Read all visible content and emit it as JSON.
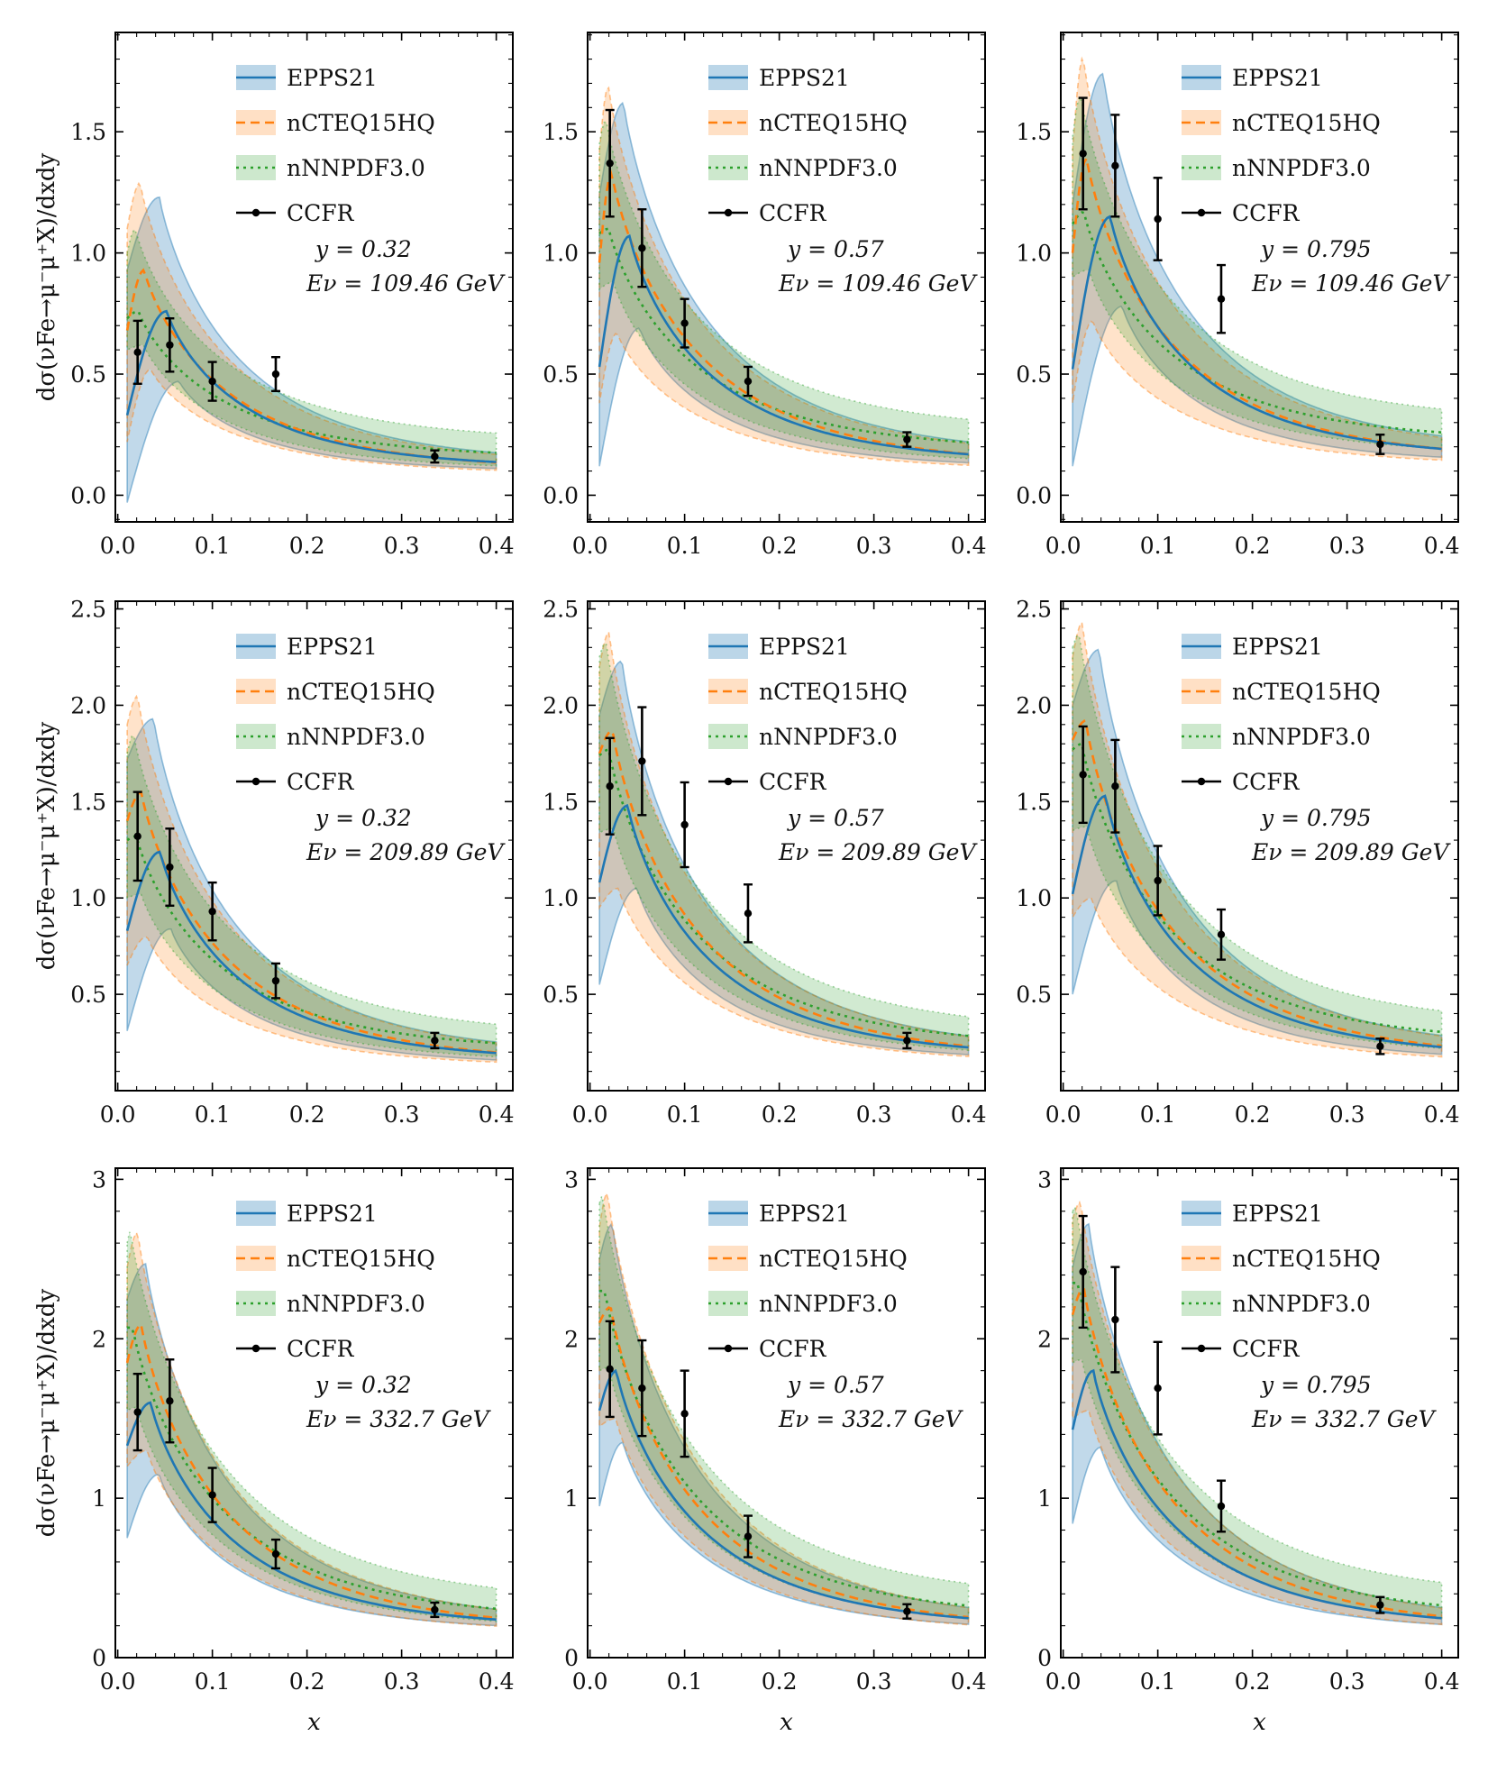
{
  "figure": {
    "ylabel": "dσ(νFe→μ⁻μ⁺X)/dxdy",
    "xlabel": "x"
  },
  "colors": {
    "epps": "#1f77b4",
    "nct": "#ff7f0e",
    "nnpdf": "#2ca02c",
    "ccfr": "#000000"
  },
  "legend": [
    "EPPS21",
    "nCTEQ15HQ",
    "nNNPDF3.0",
    "CCFR"
  ],
  "chart_data": [
    {
      "type": "line",
      "row": 0,
      "col": 0,
      "y_label": "y = 0.32",
      "e_label": "Eν = 109.46 GeV",
      "xlim": [
        -0.0025,
        0.4175
      ],
      "ylim": [
        -0.11,
        1.91
      ],
      "xticks": [
        "0.0",
        "0.1",
        "0.2",
        "0.3",
        "0.4"
      ],
      "yticks": [
        "0.0",
        "0.5",
        "1.0",
        "1.5"
      ],
      "epps": {
        "peak": 0.76,
        "xpk": 0.052,
        "start": 0.33,
        "tail": 0.11,
        "lo_start": -0.03,
        "lo_peak": 0.47,
        "lo_tail": 0.095,
        "hi_start": 0.93,
        "hi_peak": 1.23,
        "hi_tail": 0.13
      },
      "nct": {
        "peak": 0.93,
        "xpk": 0.028,
        "start": 0.68,
        "tail": 0.1,
        "lo_start": 0.22,
        "lo_peak": 0.52,
        "lo_tail": 0.085,
        "hi_start": 1.1,
        "hi_peak": 1.29,
        "hi_tail": 0.12
      },
      "nnpdf": {
        "peak": 0.76,
        "xpk": 0.022,
        "start": 0.73,
        "tail": 0.15,
        "lo_start": 0.6,
        "lo_peak": 0.62,
        "lo_tail": 0.1,
        "hi_start": 1.0,
        "hi_peak": 1.1,
        "hi_tail": 0.22
      },
      "ccfr": {
        "x": [
          0.021,
          0.055,
          0.1,
          0.167,
          0.335
        ],
        "y": [
          0.59,
          0.62,
          0.47,
          0.5,
          0.16
        ],
        "err": [
          0.13,
          0.11,
          0.08,
          0.07,
          0.025
        ]
      }
    },
    {
      "type": "line",
      "row": 0,
      "col": 1,
      "y_label": "y = 0.57",
      "e_label": "Eν = 109.46 GeV",
      "xlim": [
        -0.0025,
        0.4175
      ],
      "ylim": [
        -0.11,
        1.91
      ],
      "xticks": [
        "0.0",
        "0.1",
        "0.2",
        "0.3",
        "0.4"
      ],
      "yticks": [
        "0.0",
        "0.5",
        "1.0",
        "1.5"
      ],
      "epps": {
        "peak": 1.07,
        "xpk": 0.042,
        "start": 0.53,
        "tail": 0.13,
        "lo_start": 0.12,
        "lo_peak": 0.69,
        "lo_tail": 0.11,
        "hi_start": 1.24,
        "hi_peak": 1.62,
        "hi_tail": 0.16
      },
      "nct": {
        "peak": 1.33,
        "xpk": 0.023,
        "start": 0.96,
        "tail": 0.12,
        "lo_start": 0.38,
        "lo_peak": 0.67,
        "lo_tail": 0.1,
        "hi_start": 1.42,
        "hi_peak": 1.69,
        "hi_tail": 0.15
      },
      "nnpdf": {
        "peak": 1.1,
        "xpk": 0.02,
        "start": 1.08,
        "tail": 0.18,
        "lo_start": 0.85,
        "lo_peak": 0.88,
        "lo_tail": 0.12,
        "hi_start": 1.45,
        "hi_peak": 1.55,
        "hi_tail": 0.26
      },
      "ccfr": {
        "x": [
          0.021,
          0.055,
          0.1,
          0.167,
          0.335
        ],
        "y": [
          1.37,
          1.02,
          0.71,
          0.47,
          0.23
        ],
        "err": [
          0.22,
          0.16,
          0.1,
          0.06,
          0.03
        ]
      }
    },
    {
      "type": "line",
      "row": 0,
      "col": 2,
      "y_label": "y = 0.795",
      "e_label": "Eν = 109.46 GeV",
      "xlim": [
        -0.0025,
        0.4175
      ],
      "ylim": [
        -0.11,
        1.91
      ],
      "xticks": [
        "0.0",
        "0.1",
        "0.2",
        "0.3",
        "0.4"
      ],
      "yticks": [
        "0.0",
        "0.5",
        "1.0",
        "1.5"
      ],
      "epps": {
        "peak": 1.15,
        "xpk": 0.05,
        "start": 0.52,
        "tail": 0.15,
        "lo_start": 0.12,
        "lo_peak": 0.78,
        "lo_tail": 0.13,
        "hi_start": 1.2,
        "hi_peak": 1.74,
        "hi_tail": 0.18
      },
      "nct": {
        "peak": 1.39,
        "xpk": 0.025,
        "start": 1.0,
        "tail": 0.14,
        "lo_start": 0.38,
        "lo_peak": 0.72,
        "lo_tail": 0.12,
        "hi_start": 1.42,
        "hi_peak": 1.81,
        "hi_tail": 0.17
      },
      "nnpdf": {
        "peak": 1.17,
        "xpk": 0.022,
        "start": 1.12,
        "tail": 0.22,
        "lo_start": 0.9,
        "lo_peak": 0.93,
        "lo_tail": 0.16,
        "hi_start": 1.48,
        "hi_peak": 1.65,
        "hi_tail": 0.3
      },
      "ccfr": {
        "x": [
          0.021,
          0.055,
          0.1,
          0.167,
          0.335
        ],
        "y": [
          1.41,
          1.36,
          1.14,
          0.81,
          0.21
        ],
        "err": [
          0.23,
          0.21,
          0.17,
          0.14,
          0.04
        ]
      }
    },
    {
      "type": "line",
      "row": 1,
      "col": 0,
      "y_label": "y = 0.32",
      "e_label": "Eν = 209.89 GeV",
      "xlim": [
        -0.0025,
        0.4175
      ],
      "ylim": [
        0.0,
        2.54
      ],
      "xticks": [
        "0.0",
        "0.1",
        "0.2",
        "0.3",
        "0.4"
      ],
      "yticks": [
        "0.5",
        "1.0",
        "1.5",
        "2.0",
        "2.5"
      ],
      "epps": {
        "peak": 1.24,
        "xpk": 0.045,
        "start": 0.83,
        "tail": 0.15,
        "lo_start": 0.31,
        "lo_peak": 0.84,
        "lo_tail": 0.13,
        "hi_start": 1.72,
        "hi_peak": 1.93,
        "hi_tail": 0.18
      },
      "nct": {
        "peak": 1.55,
        "xpk": 0.025,
        "start": 1.4,
        "tail": 0.14,
        "lo_start": 0.65,
        "lo_peak": 0.8,
        "lo_tail": 0.12,
        "hi_start": 1.9,
        "hi_peak": 2.05,
        "hi_tail": 0.17
      },
      "nnpdf": {
        "peak": 1.32,
        "xpk": 0.02,
        "start": 1.3,
        "tail": 0.2,
        "lo_start": 1.0,
        "lo_peak": 1.02,
        "lo_tail": 0.14,
        "hi_start": 1.75,
        "hi_peak": 1.85,
        "hi_tail": 0.28
      },
      "ccfr": {
        "x": [
          0.021,
          0.055,
          0.1,
          0.167,
          0.335
        ],
        "y": [
          1.32,
          1.16,
          0.93,
          0.57,
          0.26
        ],
        "err": [
          0.23,
          0.2,
          0.15,
          0.09,
          0.04
        ]
      }
    },
    {
      "type": "line",
      "row": 1,
      "col": 1,
      "y_label": "y = 0.57",
      "e_label": "Eν = 209.89 GeV",
      "xlim": [
        -0.0025,
        0.4175
      ],
      "ylim": [
        0.0,
        2.54
      ],
      "xticks": [
        "0.0",
        "0.1",
        "0.2",
        "0.3",
        "0.4"
      ],
      "yticks": [
        "0.5",
        "1.0",
        "1.5",
        "2.0",
        "2.5"
      ],
      "epps": {
        "peak": 1.48,
        "xpk": 0.04,
        "start": 1.08,
        "tail": 0.17,
        "lo_start": 0.55,
        "lo_peak": 1.05,
        "lo_tail": 0.15,
        "hi_start": 1.95,
        "hi_peak": 2.23,
        "hi_tail": 0.2
      },
      "nct": {
        "peak": 1.87,
        "xpk": 0.024,
        "start": 1.75,
        "tail": 0.16,
        "lo_start": 0.95,
        "lo_peak": 1.05,
        "lo_tail": 0.14,
        "hi_start": 2.2,
        "hi_peak": 2.38,
        "hi_tail": 0.19
      },
      "nnpdf": {
        "peak": 1.77,
        "xpk": 0.02,
        "start": 1.74,
        "tail": 0.22,
        "lo_start": 1.34,
        "lo_peak": 1.36,
        "lo_tail": 0.16,
        "hi_start": 2.25,
        "hi_peak": 2.33,
        "hi_tail": 0.3
      },
      "ccfr": {
        "x": [
          0.021,
          0.055,
          0.1,
          0.167,
          0.335
        ],
        "y": [
          1.58,
          1.71,
          1.38,
          0.92,
          0.26
        ],
        "err": [
          0.25,
          0.28,
          0.22,
          0.15,
          0.04
        ]
      }
    },
    {
      "type": "line",
      "row": 1,
      "col": 2,
      "y_label": "y = 0.795",
      "e_label": "Eν = 209.89 GeV",
      "xlim": [
        -0.0025,
        0.4175
      ],
      "ylim": [
        0.0,
        2.54
      ],
      "xticks": [
        "0.0",
        "0.1",
        "0.2",
        "0.3",
        "0.4"
      ],
      "yticks": [
        "0.5",
        "1.0",
        "1.5",
        "2.0",
        "2.5"
      ],
      "epps": {
        "peak": 1.53,
        "xpk": 0.045,
        "start": 1.02,
        "tail": 0.17,
        "lo_start": 0.5,
        "lo_peak": 1.09,
        "lo_tail": 0.15,
        "hi_start": 2.0,
        "hi_peak": 2.29,
        "hi_tail": 0.2
      },
      "nct": {
        "peak": 1.92,
        "xpk": 0.024,
        "start": 1.82,
        "tail": 0.16,
        "lo_start": 0.9,
        "lo_peak": 1.0,
        "lo_tail": 0.14,
        "hi_start": 2.25,
        "hi_peak": 2.43,
        "hi_tail": 0.19
      },
      "nnpdf": {
        "peak": 1.8,
        "xpk": 0.02,
        "start": 1.77,
        "tail": 0.24,
        "lo_start": 1.35,
        "lo_peak": 1.37,
        "lo_tail": 0.17,
        "hi_start": 2.3,
        "hi_peak": 2.37,
        "hi_tail": 0.33
      },
      "ccfr": {
        "x": [
          0.021,
          0.055,
          0.1,
          0.167,
          0.335
        ],
        "y": [
          1.64,
          1.58,
          1.09,
          0.81,
          0.23
        ],
        "err": [
          0.25,
          0.24,
          0.18,
          0.13,
          0.04
        ]
      }
    },
    {
      "type": "line",
      "row": 2,
      "col": 0,
      "y_label": "y = 0.32",
      "e_label": "Eν = 332.7 GeV",
      "xlim": [
        -0.0025,
        0.4175
      ],
      "ylim": [
        0.0,
        3.07
      ],
      "xticks": [
        "0.0",
        "0.1",
        "0.2",
        "0.3",
        "0.4"
      ],
      "yticks": [
        "0",
        "1",
        "2",
        "3"
      ],
      "epps": {
        "peak": 1.6,
        "xpk": 0.035,
        "start": 1.33,
        "tail": 0.18,
        "lo_start": 0.75,
        "lo_peak": 1.15,
        "lo_tail": 0.16,
        "hi_start": 2.25,
        "hi_peak": 2.47,
        "hi_tail": 0.21
      },
      "nct": {
        "peak": 2.09,
        "xpk": 0.025,
        "start": 1.85,
        "tail": 0.17,
        "lo_start": 1.2,
        "lo_peak": 1.3,
        "lo_tail": 0.15,
        "hi_start": 2.45,
        "hi_peak": 2.67,
        "hi_tail": 0.2
      },
      "nnpdf": {
        "peak": 2.07,
        "xpk": 0.016,
        "start": 2.07,
        "tail": 0.23,
        "lo_start": 1.55,
        "lo_peak": 1.57,
        "lo_tail": 0.17,
        "hi_start": 2.6,
        "hi_peak": 2.68,
        "hi_tail": 0.34
      },
      "ccfr": {
        "x": [
          0.021,
          0.055,
          0.1,
          0.167,
          0.335
        ],
        "y": [
          1.54,
          1.61,
          1.02,
          0.65,
          0.3
        ],
        "err": [
          0.24,
          0.26,
          0.17,
          0.09,
          0.045
        ]
      }
    },
    {
      "type": "line",
      "row": 2,
      "col": 1,
      "y_label": "y = 0.57",
      "e_label": "Eν = 332.7 GeV",
      "xlim": [
        -0.0025,
        0.4175
      ],
      "ylim": [
        0.0,
        3.07
      ],
      "xticks": [
        "0.0",
        "0.1",
        "0.2",
        "0.3",
        "0.4"
      ],
      "yticks": [
        "0",
        "1",
        "2",
        "3"
      ],
      "epps": {
        "peak": 1.8,
        "xpk": 0.028,
        "start": 1.55,
        "tail": 0.18,
        "lo_start": 0.95,
        "lo_peak": 1.35,
        "lo_tail": 0.16,
        "hi_start": 2.5,
        "hi_peak": 2.72,
        "hi_tail": 0.21
      },
      "nct": {
        "peak": 2.2,
        "xpk": 0.022,
        "start": 2.1,
        "tail": 0.17,
        "lo_start": 1.45,
        "lo_peak": 1.5,
        "lo_tail": 0.15,
        "hi_start": 2.7,
        "hi_peak": 2.92,
        "hi_tail": 0.2
      },
      "nnpdf": {
        "peak": 2.3,
        "xpk": 0.016,
        "start": 2.3,
        "tail": 0.24,
        "lo_start": 1.8,
        "lo_peak": 1.82,
        "lo_tail": 0.18,
        "hi_start": 2.85,
        "hi_peak": 2.9,
        "hi_tail": 0.36
      },
      "ccfr": {
        "x": [
          0.021,
          0.055,
          0.1,
          0.167,
          0.335
        ],
        "y": [
          1.81,
          1.69,
          1.53,
          0.76,
          0.29
        ],
        "err": [
          0.3,
          0.3,
          0.27,
          0.13,
          0.045
        ]
      }
    },
    {
      "type": "line",
      "row": 2,
      "col": 2,
      "y_label": "y = 0.795",
      "e_label": "Eν = 332.7 GeV",
      "xlim": [
        -0.0025,
        0.4175
      ],
      "ylim": [
        0.0,
        3.07
      ],
      "xticks": [
        "0.0",
        "0.1",
        "0.2",
        "0.3",
        "0.4"
      ],
      "yticks": [
        "0",
        "1",
        "2",
        "3"
      ],
      "epps": {
        "peak": 1.8,
        "xpk": 0.032,
        "start": 1.43,
        "tail": 0.18,
        "lo_start": 0.84,
        "lo_peak": 1.32,
        "lo_tail": 0.16,
        "hi_start": 2.45,
        "hi_peak": 2.72,
        "hi_tail": 0.21
      },
      "nct": {
        "peak": 2.32,
        "xpk": 0.022,
        "start": 2.15,
        "tail": 0.17,
        "lo_start": 1.5,
        "lo_peak": 1.55,
        "lo_tail": 0.15,
        "hi_start": 2.75,
        "hi_peak": 2.86,
        "hi_tail": 0.2
      },
      "nnpdf": {
        "peak": 2.35,
        "xpk": 0.016,
        "start": 2.35,
        "tail": 0.24,
        "lo_start": 1.85,
        "lo_peak": 1.87,
        "lo_tail": 0.18,
        "hi_start": 2.8,
        "hi_peak": 2.83,
        "hi_tail": 0.37
      },
      "ccfr": {
        "x": [
          0.021,
          0.055,
          0.1,
          0.167,
          0.335
        ],
        "y": [
          2.42,
          2.12,
          1.69,
          0.95,
          0.33
        ],
        "err": [
          0.35,
          0.33,
          0.29,
          0.16,
          0.05
        ]
      }
    }
  ]
}
